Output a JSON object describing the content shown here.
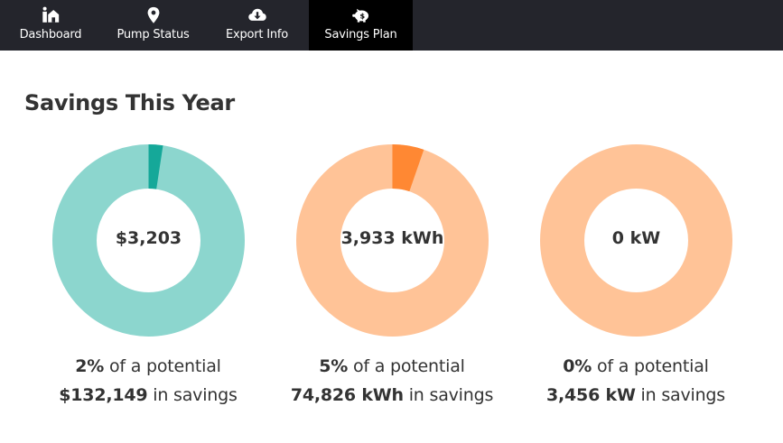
{
  "nav": {
    "tabs": [
      {
        "label": "Dashboard",
        "icon": "home-icon"
      },
      {
        "label": "Pump Status",
        "icon": "location-pin-icon"
      },
      {
        "label": "Export Info",
        "icon": "cloud-download-icon"
      },
      {
        "label": "Savings Plan",
        "icon": "piggy-bank-icon",
        "active": true
      }
    ]
  },
  "page": {
    "title": "Savings This Year"
  },
  "cards": [
    {
      "center_value": "$3,203",
      "percent": "2%",
      "text1": " of a potential",
      "potential": "$132,149",
      "text2": " in savings",
      "fraction": 0.024,
      "colors": {
        "base": "#8cd6ce",
        "accent": "#15a899"
      }
    },
    {
      "center_value": "3,933 kWh",
      "percent": "5%",
      "text1": " of a potential",
      "potential": "74,826 kWh",
      "text2": " in savings",
      "fraction": 0.053,
      "colors": {
        "base": "#ffc397",
        "accent": "#ff8833"
      }
    },
    {
      "center_value": "0 kW",
      "percent": "0%",
      "text1": " of a potential",
      "potential": "3,456 kW",
      "text2": " in savings",
      "fraction": 0,
      "colors": {
        "base": "#ffc397",
        "accent": "#ff8833"
      }
    }
  ],
  "colors": {
    "navbar": "#24252c",
    "active_tab": "#000000"
  }
}
